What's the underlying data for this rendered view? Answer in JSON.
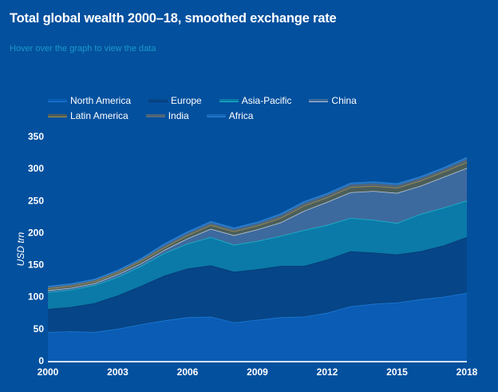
{
  "title": "Total global wealth 2000–18, smoothed exchange rate",
  "subtitle": "Hover over the graph to view the data",
  "chart_data": {
    "type": "area",
    "stacked": true,
    "title": "Total global wealth 2000–18, smoothed exchange rate",
    "xlabel": "",
    "ylabel": "USD trn",
    "ylim": [
      0,
      350
    ],
    "xlim": [
      2000,
      2018
    ],
    "yticks": [
      "0",
      "50",
      "100",
      "150",
      "200",
      "250",
      "300",
      "350"
    ],
    "xticks": [
      "2000",
      "2003",
      "2006",
      "2009",
      "2012",
      "2015",
      "2018"
    ],
    "legend_position": "top",
    "grid": false,
    "x": [
      2000,
      2001,
      2002,
      2003,
      2004,
      2005,
      2006,
      2007,
      2008,
      2009,
      2010,
      2011,
      2012,
      2013,
      2014,
      2015,
      2016,
      2017,
      2018
    ],
    "series": [
      {
        "name": "North America",
        "fill": "#0a5cb4",
        "line": "#1e7ad6",
        "values": [
          45,
          46,
          45,
          50,
          57,
          63,
          68,
          69,
          60,
          64,
          68,
          69,
          75,
          85,
          89,
          91,
          96,
          100,
          106
        ]
      },
      {
        "name": "Europe",
        "fill": "#064587",
        "line": "#053a73",
        "values": [
          36,
          38,
          45,
          52,
          60,
          70,
          76,
          80,
          79,
          79,
          80,
          79,
          83,
          86,
          80,
          75,
          75,
          80,
          87
        ]
      },
      {
        "name": "Asia-Pacific",
        "fill": "#0b7aa8",
        "line": "#19b6c9",
        "values": [
          26,
          27,
          28,
          29,
          31,
          35,
          39,
          44,
          42,
          44,
          47,
          56,
          54,
          52,
          51,
          49,
          58,
          59,
          57
        ]
      },
      {
        "name": "China",
        "fill": "#3d6a9e",
        "line": "#b9c7d8",
        "values": [
          3,
          3,
          3,
          4,
          4,
          5,
          8,
          13,
          15,
          18,
          21,
          30,
          36,
          40,
          45,
          47,
          44,
          48,
          51
        ]
      },
      {
        "name": "Latin America",
        "fill": "#4b5e5a",
        "line": "#a7904a",
        "values": [
          3,
          3,
          3,
          3,
          4,
          4,
          5,
          6,
          6,
          6,
          7,
          8,
          7,
          8,
          8,
          8,
          8,
          8,
          9
        ]
      },
      {
        "name": "India",
        "fill": "#4d6478",
        "line": "#5f6f80",
        "values": [
          2,
          2,
          2,
          2,
          2,
          3,
          3,
          3,
          3,
          3,
          4,
          4,
          4,
          4,
          4,
          4,
          4,
          4,
          5
        ]
      },
      {
        "name": "Africa",
        "fill": "#1866b8",
        "line": "#2a7fd0",
        "values": [
          1,
          1,
          1,
          1,
          1,
          2,
          2,
          2,
          2,
          2,
          2,
          2,
          2,
          2,
          2,
          2,
          2,
          2,
          2
        ]
      }
    ]
  }
}
